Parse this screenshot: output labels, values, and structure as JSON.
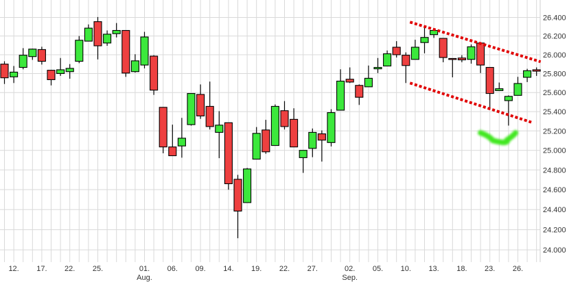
{
  "chart_data": {
    "type": "candlestick",
    "title": "",
    "xlabel": "",
    "ylabel": "",
    "y_scale": "log",
    "ylim": [
      23880,
      26590
    ],
    "grid": true,
    "y_axis_side": "right",
    "colors": {
      "up": "#3ce83c",
      "down": "#ee4040",
      "grid": "#d9d9d9",
      "wick": "#000000",
      "trendline": "#e00000",
      "highlight": "#39e619"
    },
    "y_ticks": [
      {
        "value": 26400,
        "label": "26.400"
      },
      {
        "value": 26200,
        "label": "26.200"
      },
      {
        "value": 26000,
        "label": "26.000"
      },
      {
        "value": 25800,
        "label": "25.800"
      },
      {
        "value": 25600,
        "label": "25.600"
      },
      {
        "value": 25400,
        "label": "25.400"
      },
      {
        "value": 25200,
        "label": "25.200"
      },
      {
        "value": 25000,
        "label": "25.000"
      },
      {
        "value": 24800,
        "label": "24.800"
      },
      {
        "value": 24600,
        "label": "24.600"
      },
      {
        "value": 24400,
        "label": "24.400"
      },
      {
        "value": 24200,
        "label": "24.200"
      },
      {
        "value": 24000,
        "label": "24.000"
      }
    ],
    "x_ticks": [
      {
        "date": "Jul 12",
        "label": "12."
      },
      {
        "date": "Jul 17",
        "label": "17."
      },
      {
        "date": "Jul 22",
        "label": "22."
      },
      {
        "date": "Jul 25",
        "label": "25."
      },
      {
        "date": "Aug 01",
        "label": "01.",
        "month": "Aug."
      },
      {
        "date": "Aug 06",
        "label": "06."
      },
      {
        "date": "Aug 09",
        "label": "09."
      },
      {
        "date": "Aug 14",
        "label": "14."
      },
      {
        "date": "Aug 19",
        "label": "19."
      },
      {
        "date": "Aug 22",
        "label": "22."
      },
      {
        "date": "Aug 27",
        "label": "27."
      },
      {
        "date": "Sep 02",
        "label": "02.",
        "month": "Sep."
      },
      {
        "date": "Sep 05",
        "label": "05."
      },
      {
        "date": "Sep 10",
        "label": "10."
      },
      {
        "date": "Sep 13",
        "label": "13."
      },
      {
        "date": "Sep 18",
        "label": "18."
      },
      {
        "date": "Sep 23",
        "label": "23."
      },
      {
        "date": "Sep 26",
        "label": "26."
      }
    ],
    "candles": [
      {
        "date": "Jul 11",
        "o": 25900,
        "h": 25930,
        "l": 25690,
        "c": 25755
      },
      {
        "date": "Jul 12",
        "o": 25765,
        "h": 25880,
        "l": 25700,
        "c": 25815
      },
      {
        "date": "Jul 15",
        "o": 25865,
        "h": 26070,
        "l": 25845,
        "c": 25995
      },
      {
        "date": "Jul 16",
        "o": 25980,
        "h": 26065,
        "l": 25945,
        "c": 26060
      },
      {
        "date": "Jul 17",
        "o": 26055,
        "h": 26085,
        "l": 25895,
        "c": 25930
      },
      {
        "date": "Jul 18",
        "o": 25835,
        "h": 25840,
        "l": 25675,
        "c": 25735
      },
      {
        "date": "Jul 19",
        "o": 25800,
        "h": 25965,
        "l": 25775,
        "c": 25840
      },
      {
        "date": "Jul 22",
        "o": 25820,
        "h": 25900,
        "l": 25745,
        "c": 25855
      },
      {
        "date": "Jul 23",
        "o": 25930,
        "h": 26200,
        "l": 25910,
        "c": 26155
      },
      {
        "date": "Jul 24",
        "o": 26145,
        "h": 26325,
        "l": 26145,
        "c": 26285
      },
      {
        "date": "Jul 25",
        "o": 26355,
        "h": 26405,
        "l": 25950,
        "c": 26095
      },
      {
        "date": "Jul 26",
        "o": 26125,
        "h": 26260,
        "l": 26095,
        "c": 26220
      },
      {
        "date": "Jul 29",
        "o": 26225,
        "h": 26340,
        "l": 26185,
        "c": 26260
      },
      {
        "date": "Jul 30",
        "o": 26260,
        "h": 26262,
        "l": 25765,
        "c": 25805
      },
      {
        "date": "Jul 31",
        "o": 25820,
        "h": 26005,
        "l": 25810,
        "c": 25935
      },
      {
        "date": "Aug 01",
        "o": 25890,
        "h": 26245,
        "l": 25855,
        "c": 26190
      },
      {
        "date": "Aug 02",
        "o": 25985,
        "h": 25995,
        "l": 25575,
        "c": 25625
      },
      {
        "date": "Aug 05",
        "o": 25445,
        "h": 25448,
        "l": 24970,
        "c": 25035
      },
      {
        "date": "Aug 06",
        "o": 25035,
        "h": 25265,
        "l": 24945,
        "c": 24945
      },
      {
        "date": "Aug 07",
        "o": 25045,
        "h": 25335,
        "l": 24925,
        "c": 25125
      },
      {
        "date": "Aug 08",
        "o": 25265,
        "h": 25590,
        "l": 25255,
        "c": 25590
      },
      {
        "date": "Aug 09",
        "o": 25580,
        "h": 25685,
        "l": 25325,
        "c": 25355
      },
      {
        "date": "Aug 12",
        "o": 25455,
        "h": 25715,
        "l": 25215,
        "c": 25245
      },
      {
        "date": "Aug 13",
        "o": 25185,
        "h": 25405,
        "l": 24920,
        "c": 25260
      },
      {
        "date": "Aug 14",
        "o": 25285,
        "h": 25287,
        "l": 24600,
        "c": 24660
      },
      {
        "date": "Aug 15",
        "o": 24705,
        "h": 24750,
        "l": 24115,
        "c": 24385
      },
      {
        "date": "Aug 16",
        "o": 24470,
        "h": 24820,
        "l": 24470,
        "c": 24810
      },
      {
        "date": "Aug 19",
        "o": 24910,
        "h": 25240,
        "l": 24910,
        "c": 25175
      },
      {
        "date": "Aug 20",
        "o": 25210,
        "h": 25315,
        "l": 24965,
        "c": 24985
      },
      {
        "date": "Aug 21",
        "o": 25050,
        "h": 25475,
        "l": 25050,
        "c": 25455
      },
      {
        "date": "Aug 22",
        "o": 25410,
        "h": 25510,
        "l": 25215,
        "c": 25245
      },
      {
        "date": "Aug 23",
        "o": 25320,
        "h": 25435,
        "l": 25035,
        "c": 25035
      },
      {
        "date": "Aug 26",
        "o": 24925,
        "h": 25000,
        "l": 24770,
        "c": 25000
      },
      {
        "date": "Aug 27",
        "o": 25020,
        "h": 25225,
        "l": 24930,
        "c": 25185
      },
      {
        "date": "Aug 28",
        "o": 25170,
        "h": 25205,
        "l": 24885,
        "c": 25105
      },
      {
        "date": "Aug 29",
        "o": 25080,
        "h": 25425,
        "l": 25040,
        "c": 25390
      },
      {
        "date": "Aug 30",
        "o": 25415,
        "h": 25845,
        "l": 25415,
        "c": 25720
      },
      {
        "date": "Sep 02",
        "o": 25740,
        "h": 25865,
        "l": 25700,
        "c": 25710
      },
      {
        "date": "Sep 03",
        "o": 25675,
        "h": 25685,
        "l": 25470,
        "c": 25550
      },
      {
        "date": "Sep 04",
        "o": 25660,
        "h": 25885,
        "l": 25660,
        "c": 25750
      },
      {
        "date": "Sep 05",
        "o": 25850,
        "h": 25965,
        "l": 25805,
        "c": 25865
      },
      {
        "date": "Sep 06",
        "o": 25880,
        "h": 26045,
        "l": 25880,
        "c": 26010
      },
      {
        "date": "Sep 09",
        "o": 26080,
        "h": 26145,
        "l": 25970,
        "c": 26000
      },
      {
        "date": "Sep 10",
        "o": 25995,
        "h": 26025,
        "l": 25700,
        "c": 25885
      },
      {
        "date": "Sep 11",
        "o": 25950,
        "h": 26160,
        "l": 25950,
        "c": 26080
      },
      {
        "date": "Sep 12",
        "o": 26130,
        "h": 26290,
        "l": 26015,
        "c": 26185
      },
      {
        "date": "Sep 13",
        "o": 26215,
        "h": 26270,
        "l": 26180,
        "c": 26260
      },
      {
        "date": "Sep 16",
        "o": 26175,
        "h": 26178,
        "l": 25920,
        "c": 25970
      },
      {
        "date": "Sep 17",
        "o": 25960,
        "h": 25962,
        "l": 25760,
        "c": 25955
      },
      {
        "date": "Sep 18",
        "o": 25965,
        "h": 25995,
        "l": 25920,
        "c": 25945
      },
      {
        "date": "Sep 19",
        "o": 25950,
        "h": 26110,
        "l": 25905,
        "c": 26085
      },
      {
        "date": "Sep 20",
        "o": 26125,
        "h": 26135,
        "l": 25805,
        "c": 25890
      },
      {
        "date": "Sep 23",
        "o": 25865,
        "h": 25867,
        "l": 25420,
        "c": 25590
      },
      {
        "date": "Sep 24",
        "o": 25620,
        "h": 25705,
        "l": 25620,
        "c": 25640
      },
      {
        "date": "Sep 25",
        "o": 25515,
        "h": 25570,
        "l": 25255,
        "c": 25560
      },
      {
        "date": "Sep 26",
        "o": 25570,
        "h": 25765,
        "l": 25570,
        "c": 25695
      },
      {
        "date": "Sep 27",
        "o": 25760,
        "h": 25850,
        "l": 25710,
        "c": 25830
      },
      {
        "date": "Sep 30",
        "o": 25840,
        "h": 25865,
        "l": 25775,
        "c": 25825
      }
    ],
    "annotations": [
      {
        "type": "dotted-trendline",
        "color": "#e00000",
        "start": {
          "date": "Sep 10",
          "value": 26350
        },
        "end": {
          "date": "Sep 30",
          "value": 25925
        }
      },
      {
        "type": "dotted-trendline",
        "color": "#e00000",
        "start": {
          "date": "Sep 10",
          "value": 25700
        },
        "end": {
          "date": "Sep 27",
          "value": 25290
        }
      },
      {
        "type": "highlight-curve",
        "color": "#39e619",
        "start": {
          "date": "Sep 20",
          "value": 25180
        },
        "bottom": {
          "date": "Sep 25",
          "value": 25080
        },
        "end": {
          "date": "Sep 27",
          "value": 25180
        }
      }
    ]
  }
}
